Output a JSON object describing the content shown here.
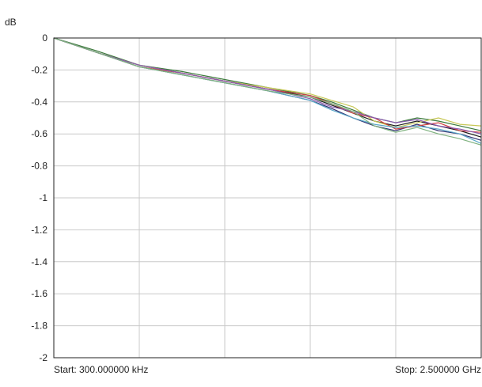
{
  "chart_data": {
    "type": "line",
    "title": "",
    "ylabel": "dB",
    "xlabel": "",
    "x_start_label": "Start: 300.000000 kHz",
    "x_stop_label": "Stop: 2.500000 GHz",
    "ylim": [
      -2,
      0
    ],
    "yticks": [
      "0",
      "-0.2",
      "-0.4",
      "-0.6",
      "-0.8",
      "-1",
      "-1.2",
      "-1.4",
      "-1.6",
      "-1.8",
      "-2"
    ],
    "grid": true,
    "x_divisions": 5,
    "x": [
      0,
      0.1,
      0.2,
      0.3,
      0.4,
      0.5,
      0.6,
      0.65,
      0.7,
      0.75,
      0.8,
      0.85,
      0.9,
      0.95,
      1.0
    ],
    "series": [
      {
        "color": "#1a1a1a",
        "values": [
          0,
          -0.09,
          -0.17,
          -0.22,
          -0.27,
          -0.32,
          -0.37,
          -0.42,
          -0.47,
          -0.52,
          -0.55,
          -0.52,
          -0.55,
          -0.58,
          -0.62
        ]
      },
      {
        "color": "#2d2d6e",
        "values": [
          0,
          -0.09,
          -0.18,
          -0.23,
          -0.28,
          -0.33,
          -0.39,
          -0.44,
          -0.5,
          -0.55,
          -0.58,
          -0.54,
          -0.58,
          -0.6,
          -0.64
        ]
      },
      {
        "color": "#3b7a3b",
        "values": [
          0,
          -0.08,
          -0.17,
          -0.21,
          -0.26,
          -0.31,
          -0.36,
          -0.4,
          -0.45,
          -0.5,
          -0.53,
          -0.5,
          -0.52,
          -0.55,
          -0.58
        ]
      },
      {
        "color": "#c8c858",
        "values": [
          0,
          -0.09,
          -0.17,
          -0.22,
          -0.27,
          -0.31,
          -0.35,
          -0.39,
          -0.43,
          -0.52,
          -0.56,
          -0.53,
          -0.5,
          -0.54,
          -0.55
        ]
      },
      {
        "color": "#d04040",
        "values": [
          0,
          -0.09,
          -0.18,
          -0.22,
          -0.27,
          -0.32,
          -0.36,
          -0.41,
          -0.47,
          -0.5,
          -0.57,
          -0.55,
          -0.53,
          -0.58,
          -0.59
        ]
      },
      {
        "color": "#5aa8c8",
        "values": [
          0,
          -0.09,
          -0.18,
          -0.23,
          -0.28,
          -0.33,
          -0.39,
          -0.45,
          -0.5,
          -0.54,
          -0.56,
          -0.55,
          -0.57,
          -0.6,
          -0.66
        ]
      },
      {
        "color": "#8a5ab0",
        "values": [
          0,
          -0.09,
          -0.17,
          -0.22,
          -0.27,
          -0.32,
          -0.38,
          -0.43,
          -0.46,
          -0.5,
          -0.53,
          -0.51,
          -0.55,
          -0.57,
          -0.6
        ]
      },
      {
        "color": "#7fb27f",
        "values": [
          0,
          -0.09,
          -0.18,
          -0.23,
          -0.28,
          -0.33,
          -0.37,
          -0.41,
          -0.46,
          -0.55,
          -0.59,
          -0.56,
          -0.6,
          -0.63,
          -0.67
        ]
      }
    ]
  }
}
